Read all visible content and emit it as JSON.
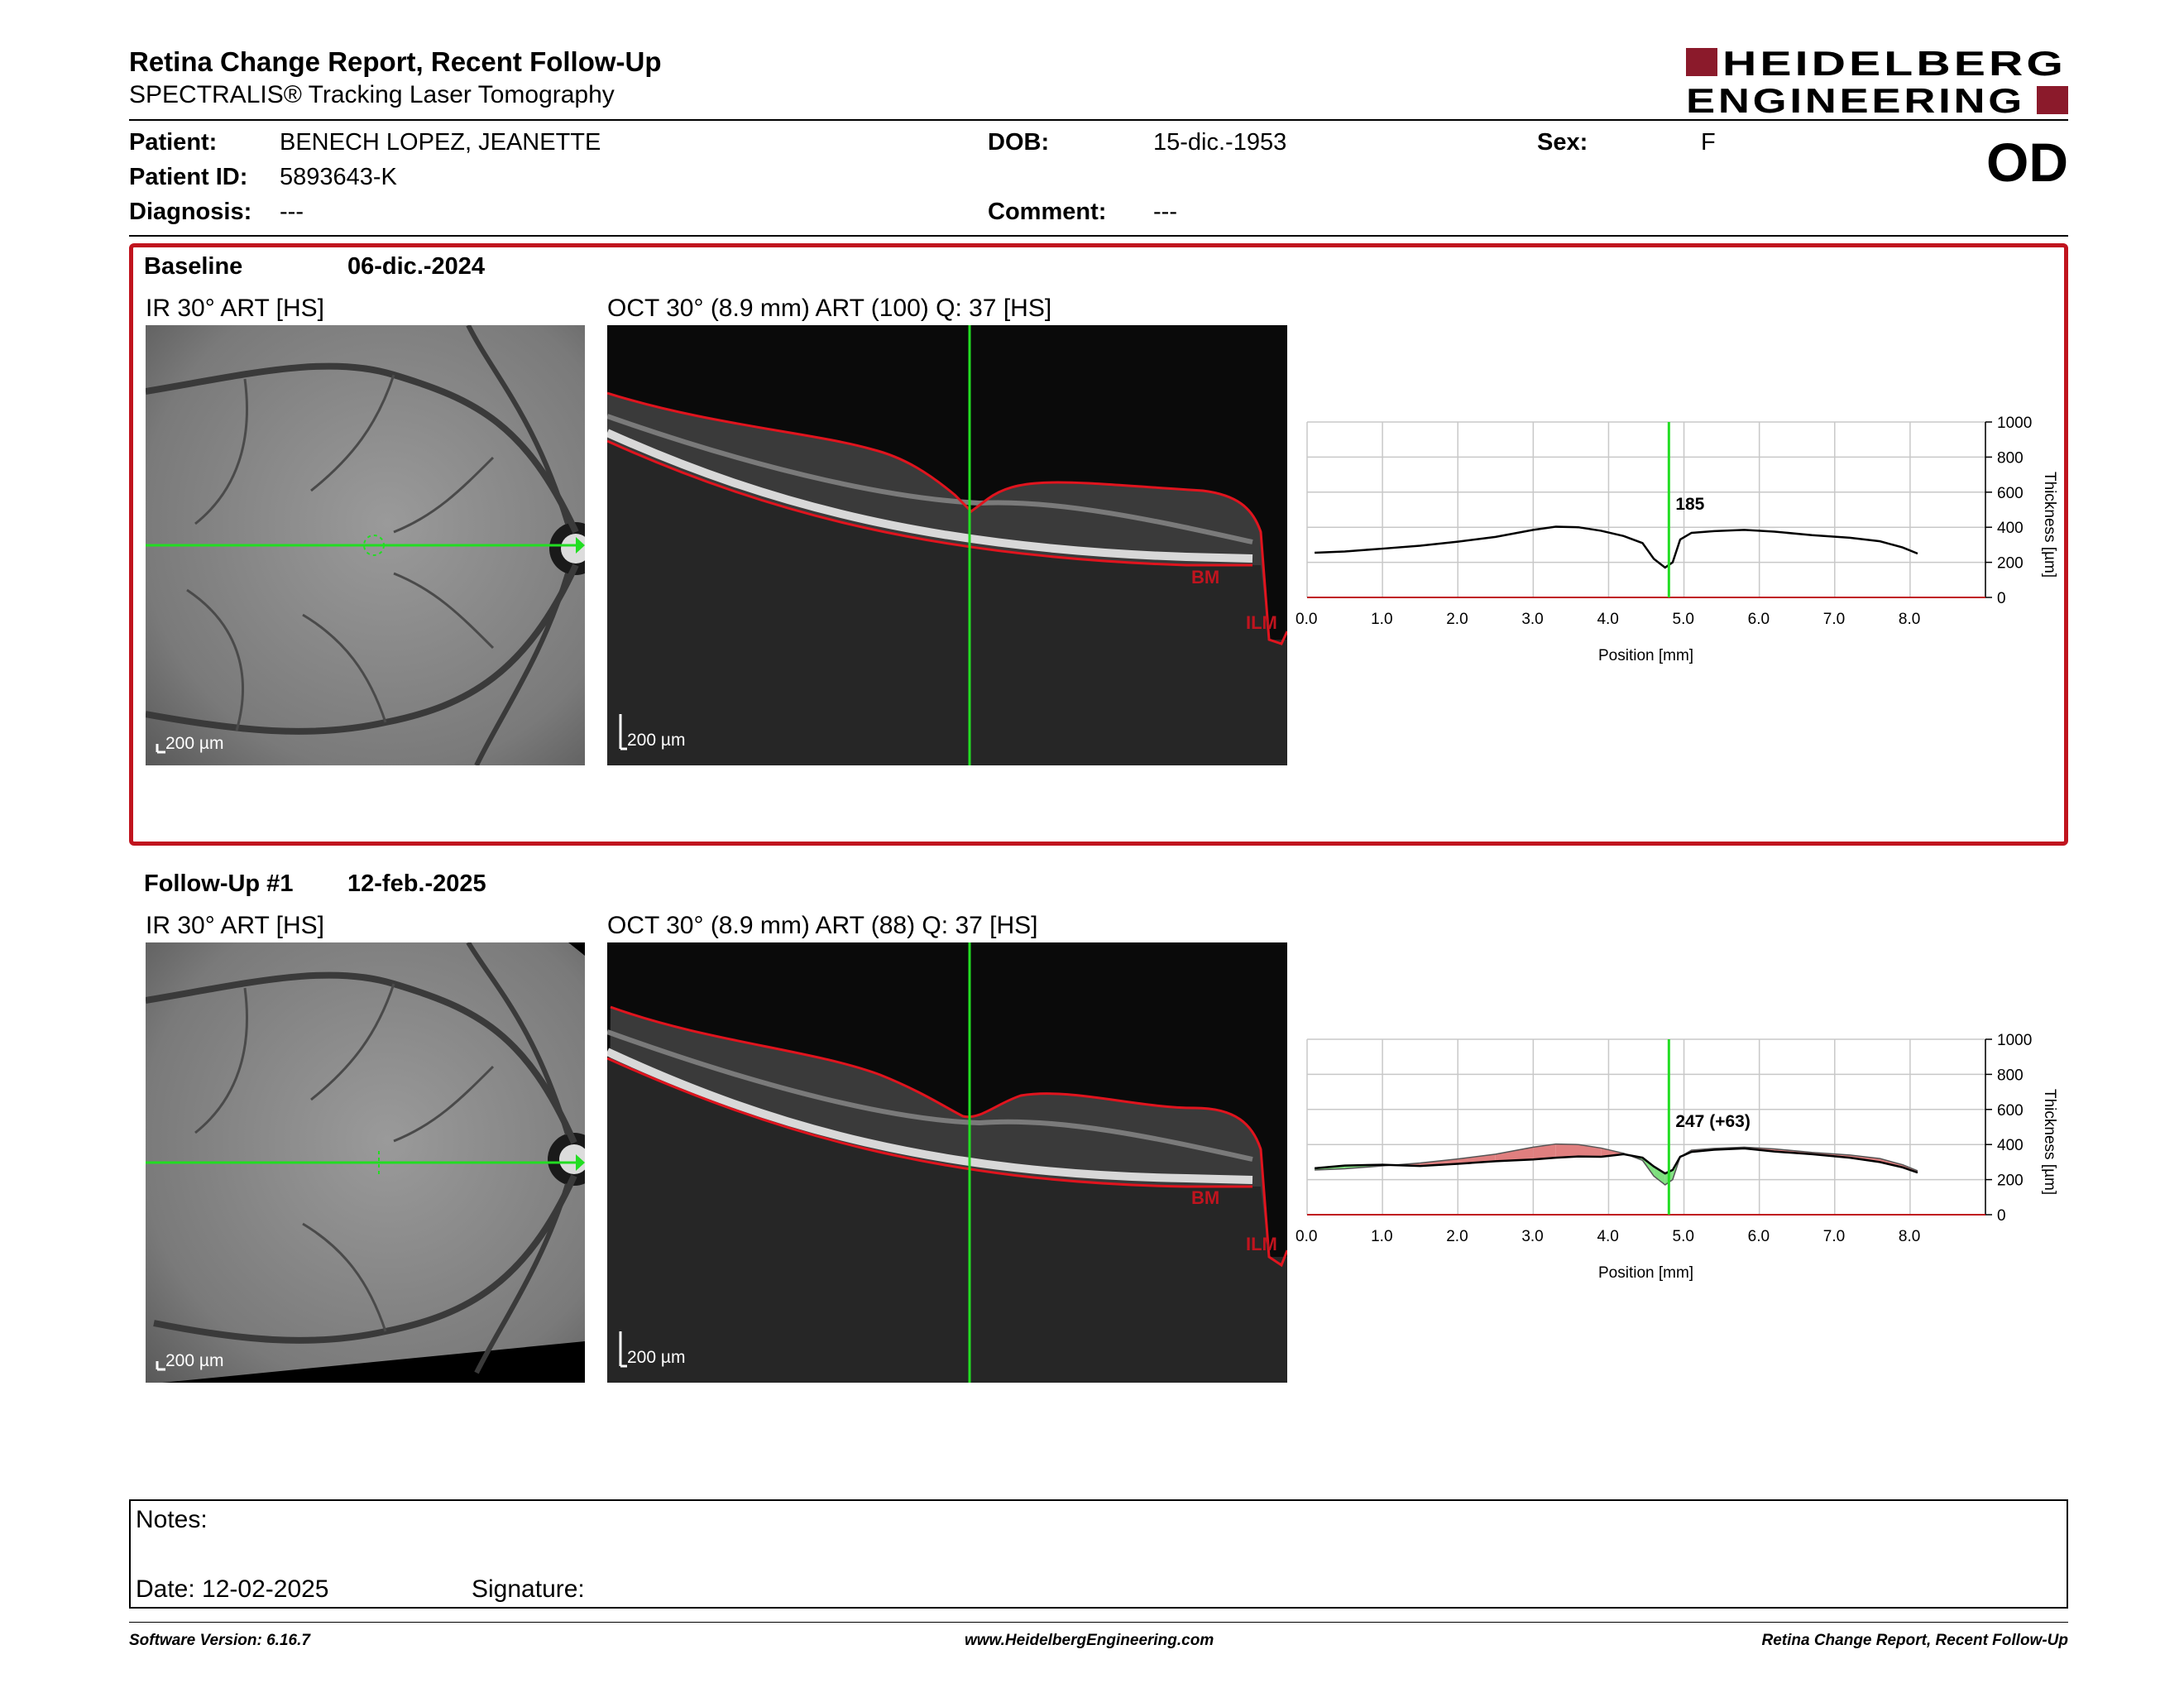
{
  "header": {
    "title": "Retina Change Report, Recent Follow-Up",
    "subtitle": "SPECTRALIS® Tracking Laser Tomography",
    "logo_line1": "HEIDELBERG",
    "logo_line2": "ENGINEERING",
    "eye": "OD"
  },
  "patient": {
    "name_label": "Patient:",
    "name": "BENECH LOPEZ, JEANETTE",
    "id_label": "Patient ID:",
    "id": "5893643-K",
    "diagnosis_label": "Diagnosis:",
    "diagnosis": "---",
    "dob_label": "DOB:",
    "dob": "15-dic.-1953",
    "comment_label": "Comment:",
    "comment": "---",
    "sex_label": "Sex:",
    "sex": "F"
  },
  "baseline": {
    "label": "Baseline",
    "date": "06-dic.-2024",
    "ir_title": "IR 30° ART [HS]",
    "oct_title": "OCT 30° (8.9 mm) ART (100) Q: 37 [HS]",
    "ir_scale": "200 µm",
    "oct_scale": "200 µm",
    "bm_label": "BM",
    "ilm_label": "ILM"
  },
  "followup": {
    "label": "Follow-Up #1",
    "date": "12-feb.-2025",
    "ir_title": "IR 30° ART [HS]",
    "oct_title": "OCT 30° (8.9 mm) ART (88) Q: 37 [HS]",
    "ir_scale": "200 µm",
    "oct_scale": "200 µm",
    "bm_label": "BM",
    "ilm_label": "ILM"
  },
  "notes": {
    "notes_label": "Notes:",
    "date_label": "Date: 12-02-2025",
    "signature_label": "Signature:"
  },
  "footer": {
    "version": "Software Version: 6.16.7",
    "website": "www.HeidelbergEngineering.com",
    "report_name": "Retina Change Report, Recent Follow-Up"
  },
  "colors": {
    "brand": "#8b1a2b",
    "box": "#c0141e",
    "segmentation": "#e0141e",
    "cursor": "#22dd22",
    "increase": "#7fe07f",
    "decrease": "#e07f7f"
  },
  "chart_data": [
    {
      "type": "line",
      "xlabel": "Position [mm]",
      "ylabel": "Thickness [µm]",
      "xlim": [
        0,
        9
      ],
      "ylim": [
        0,
        1000
      ],
      "x_ticks": [
        "0.0",
        "1.0",
        "2.0",
        "3.0",
        "4.0",
        "5.0",
        "6.0",
        "7.0",
        "8.0"
      ],
      "y_ticks": [
        "0",
        "200",
        "400",
        "600",
        "800",
        "1000"
      ],
      "grid": true,
      "cursor_x": 4.8,
      "cursor_label": "185",
      "series": [
        {
          "x": [
            0.1,
            0.5,
            1.0,
            1.5,
            2.0,
            2.5,
            3.0,
            3.3,
            3.6,
            3.9,
            4.2,
            4.45,
            4.6,
            4.75,
            4.85,
            4.95,
            5.1,
            5.4,
            5.8,
            6.2,
            6.7,
            7.2,
            7.6,
            7.9,
            8.1
          ],
          "y": [
            255,
            262,
            278,
            295,
            318,
            345,
            385,
            403,
            400,
            380,
            350,
            310,
            220,
            170,
            200,
            330,
            368,
            378,
            385,
            375,
            355,
            340,
            320,
            285,
            250
          ]
        }
      ]
    },
    {
      "type": "area",
      "xlabel": "Position [mm]",
      "ylabel": "Thickness [µm]",
      "xlim": [
        0,
        9
      ],
      "ylim": [
        0,
        1000
      ],
      "x_ticks": [
        "0.0",
        "1.0",
        "2.0",
        "3.0",
        "4.0",
        "5.0",
        "6.0",
        "7.0",
        "8.0"
      ],
      "y_ticks": [
        "0",
        "200",
        "400",
        "600",
        "800",
        "1000"
      ],
      "grid": true,
      "cursor_x": 4.8,
      "cursor_label": "247 (+63)",
      "series": [
        {
          "x": [
            0.1,
            0.5,
            1.0,
            1.5,
            2.0,
            2.5,
            3.0,
            3.3,
            3.6,
            3.9,
            4.2,
            4.45,
            4.6,
            4.75,
            4.85,
            4.95,
            5.1,
            5.4,
            5.8,
            6.2,
            6.7,
            7.2,
            7.6,
            7.9,
            8.1
          ],
          "y": [
            255,
            262,
            278,
            295,
            318,
            345,
            385,
            403,
            400,
            380,
            350,
            310,
            220,
            170,
            200,
            330,
            368,
            378,
            385,
            375,
            355,
            340,
            320,
            285,
            250
          ]
        },
        {
          "x": [
            0.1,
            0.5,
            1.0,
            1.5,
            2.0,
            2.5,
            3.0,
            3.3,
            3.6,
            3.9,
            4.2,
            4.45,
            4.6,
            4.75,
            4.85,
            4.95,
            5.1,
            5.4,
            5.8,
            6.2,
            6.7,
            7.2,
            7.6,
            7.9,
            8.1
          ],
          "y": [
            265,
            280,
            285,
            278,
            290,
            305,
            315,
            325,
            332,
            330,
            345,
            325,
            275,
            235,
            255,
            330,
            358,
            370,
            378,
            360,
            345,
            325,
            300,
            270,
            240
          ]
        }
      ]
    }
  ]
}
